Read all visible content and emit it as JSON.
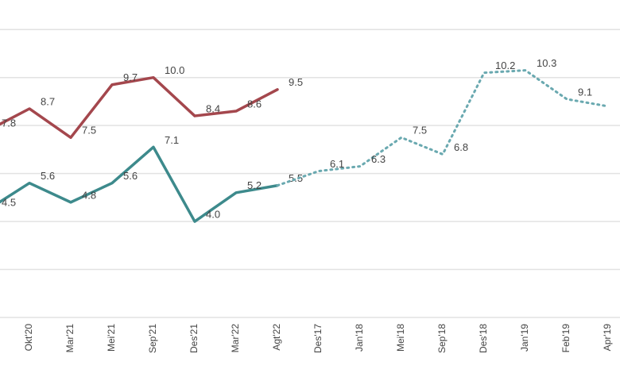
{
  "chart_data": {
    "type": "line",
    "categories": [
      null,
      "Okt'20",
      "Mar'21",
      "Mei'21",
      "Sep'21",
      "Des'21",
      "Mar'22",
      "Agt'22",
      "Des'17",
      "Jan'18",
      "Mei'18",
      "Sep'18",
      "Des'18",
      "Jan'19",
      "Feb'19",
      "Apr'19"
    ],
    "series": [
      {
        "color": "#a4474d",
        "line_style": "solid",
        "values": [
          7.8,
          8.7,
          7.5,
          9.7,
          10.0,
          8.4,
          8.6,
          9.5,
          null,
          null,
          null,
          null,
          null,
          null,
          null,
          null
        ],
        "value_labels": [
          "7.8",
          "8.7",
          "7.5",
          "9.7",
          "10.0",
          "8.4",
          "8.6",
          "9.5",
          null,
          null,
          null,
          null,
          null,
          null,
          null,
          null
        ]
      },
      {
        "color": "#3d8a8c",
        "line_style": "solid",
        "values": [
          4.5,
          5.6,
          4.8,
          5.6,
          7.1,
          4.0,
          5.2,
          5.5,
          null,
          null,
          null,
          null,
          null,
          null,
          null,
          null
        ],
        "value_labels": [
          "4.5",
          "5.6",
          "4.8",
          "5.6",
          "7.1",
          "4.0",
          "5.2",
          "5.5",
          null,
          null,
          null,
          null,
          null,
          null,
          null,
          null
        ]
      },
      {
        "color": "#6aa9b0",
        "line_style": "dotted",
        "values": [
          null,
          null,
          null,
          null,
          null,
          null,
          null,
          5.5,
          6.1,
          6.3,
          7.5,
          6.8,
          10.2,
          10.3,
          9.1,
          8.8
        ],
        "value_labels": [
          null,
          null,
          null,
          null,
          null,
          null,
          null,
          null,
          "6.1",
          "6.3",
          "7.5",
          "6.8",
          "10.2",
          "10.3",
          "9.1",
          null
        ]
      }
    ],
    "ylim": [
      0,
      13
    ],
    "yticks": [
      0,
      2,
      4,
      6,
      8,
      10,
      12
    ],
    "grid": true
  }
}
